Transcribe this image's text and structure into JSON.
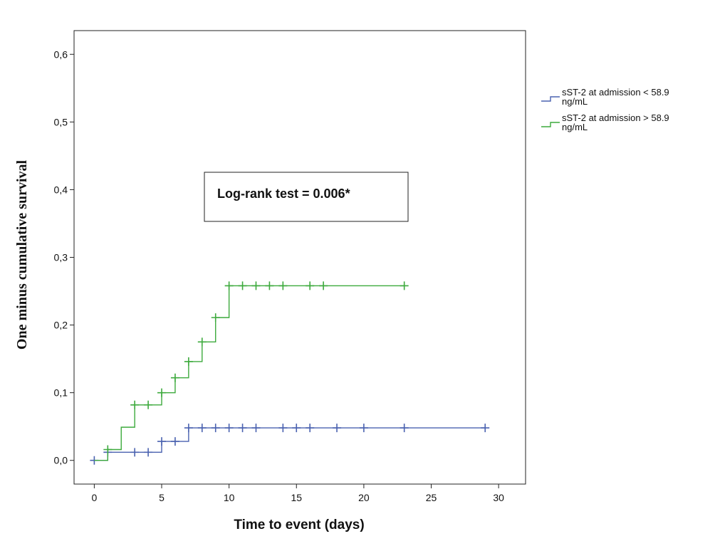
{
  "chart_data": {
    "type": "line",
    "subtype": "kaplan-meier-step",
    "xlabel": "Time to event (days)",
    "ylabel": "One minus cumulative survival",
    "xlim": [
      -1.5,
      32
    ],
    "ylim": [
      -0.035,
      0.635
    ],
    "x_ticks": [
      0,
      5,
      10,
      15,
      20,
      25,
      30
    ],
    "x_tick_labels": [
      "0",
      "5",
      "10",
      "15",
      "20",
      "25",
      "30"
    ],
    "y_ticks": [
      0.0,
      0.1,
      0.2,
      0.3,
      0.4,
      0.5,
      0.6
    ],
    "y_tick_labels": [
      "0,0",
      "0,1",
      "0,2",
      "0,3",
      "0,4",
      "0,5",
      "0,6"
    ],
    "grid": false,
    "legend_position": "right",
    "annotation": "Log-rank test = 0.006*",
    "series": [
      {
        "name": "sST-2 at admission < 58.9 ng/mL",
        "color": "#4a62b0",
        "steps": [
          [
            0,
            0.0
          ],
          [
            1,
            0.012
          ],
          [
            5,
            0.028
          ],
          [
            7,
            0.048
          ],
          [
            29,
            0.048
          ]
        ],
        "censored": [
          [
            0,
            0.0
          ],
          [
            1,
            0.012
          ],
          [
            3,
            0.012
          ],
          [
            4,
            0.012
          ],
          [
            5,
            0.028
          ],
          [
            6,
            0.028
          ],
          [
            7,
            0.048
          ],
          [
            8,
            0.048
          ],
          [
            9,
            0.048
          ],
          [
            10,
            0.048
          ],
          [
            11,
            0.048
          ],
          [
            12,
            0.048
          ],
          [
            14,
            0.048
          ],
          [
            15,
            0.048
          ],
          [
            16,
            0.048
          ],
          [
            18,
            0.048
          ],
          [
            20,
            0.048
          ],
          [
            23,
            0.048
          ],
          [
            29,
            0.048
          ]
        ]
      },
      {
        "name": "sST-2 at admission > 58.9 ng/mL",
        "color": "#3daa3d",
        "steps": [
          [
            0,
            0.0
          ],
          [
            1,
            0.016
          ],
          [
            2,
            0.049
          ],
          [
            3,
            0.082
          ],
          [
            5,
            0.1
          ],
          [
            6,
            0.122
          ],
          [
            7,
            0.146
          ],
          [
            8,
            0.175
          ],
          [
            9,
            0.211
          ],
          [
            10,
            0.258
          ],
          [
            23,
            0.258
          ]
        ],
        "censored": [
          [
            1,
            0.016
          ],
          [
            3,
            0.082
          ],
          [
            4,
            0.082
          ],
          [
            5,
            0.1
          ],
          [
            6,
            0.122
          ],
          [
            7,
            0.146
          ],
          [
            8,
            0.175
          ],
          [
            9,
            0.211
          ],
          [
            10,
            0.258
          ],
          [
            11,
            0.258
          ],
          [
            12,
            0.258
          ],
          [
            13,
            0.258
          ],
          [
            14,
            0.258
          ],
          [
            16,
            0.258
          ],
          [
            17,
            0.258
          ],
          [
            23,
            0.258
          ]
        ]
      }
    ]
  }
}
